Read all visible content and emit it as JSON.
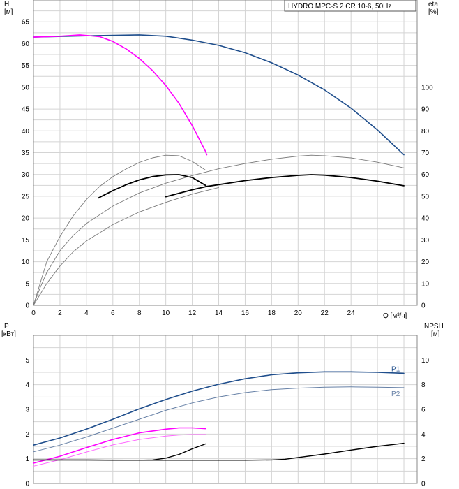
{
  "chart_data": [
    {
      "type": "line",
      "legend_box": "HYDRO MPC-S 2 CR 10-6, 50Hz",
      "y_label_left": "H",
      "y_unit_left": "[м]",
      "y_label_right": "eta",
      "y_unit_right": "[%]",
      "x_label": "Q [м³/ч]",
      "xlim": [
        0,
        29
      ],
      "x_ticks": [
        0,
        2,
        4,
        6,
        8,
        10,
        12,
        14,
        16,
        18,
        20,
        22,
        24
      ],
      "ylim": [
        0,
        70
      ],
      "y_ticks": [
        0,
        5,
        10,
        15,
        20,
        25,
        30,
        35,
        40,
        45,
        50,
        55,
        60,
        65
      ],
      "y2lim": [
        0,
        140
      ],
      "y2_ticks": [
        0,
        10,
        20,
        30,
        40,
        50,
        60,
        70,
        80,
        90,
        100
      ],
      "grid": true,
      "series": [
        {
          "color": "#1f4e8c",
          "width": 1.6,
          "axis": "left",
          "points": [
            [
              0,
              61.5
            ],
            [
              4,
              61.8
            ],
            [
              8,
              62
            ],
            [
              10,
              61.7
            ],
            [
              12,
              60.8
            ],
            [
              14,
              59.6
            ],
            [
              16,
              57.9
            ],
            [
              18,
              55.6
            ],
            [
              20,
              52.8
            ],
            [
              22,
              49.4
            ],
            [
              24,
              45.2
            ],
            [
              26,
              40.2
            ],
            [
              28,
              34.5
            ]
          ]
        },
        {
          "color": "#ff00ff",
          "width": 1.6,
          "axis": "left",
          "points": [
            [
              0,
              61.5
            ],
            [
              2,
              61.7
            ],
            [
              3.5,
              62
            ],
            [
              5,
              61.6
            ],
            [
              6,
              60.5
            ],
            [
              7,
              58.8
            ],
            [
              8,
              56.6
            ],
            [
              9,
              53.8
            ],
            [
              10,
              50.4
            ],
            [
              11,
              46.3
            ],
            [
              12,
              41.2
            ],
            [
              13,
              35.3
            ],
            [
              13.1,
              34.5
            ]
          ]
        },
        {
          "color": "#000000",
          "width": 1.8,
          "axis": "right",
          "points": [
            [
              4.9,
              49.2
            ],
            [
              6,
              52.6
            ],
            [
              7,
              55.3
            ],
            [
              8,
              57.5
            ],
            [
              9,
              59.0
            ],
            [
              10,
              59.8
            ],
            [
              11,
              59.9
            ],
            [
              12,
              58.6
            ],
            [
              13,
              55.0
            ]
          ]
        },
        {
          "color": "#000000",
          "width": 1.8,
          "axis": "right",
          "points": [
            [
              10,
              49.8
            ],
            [
              12,
              53.0
            ],
            [
              13,
              54.4
            ],
            [
              16,
              57.2
            ],
            [
              18,
              58.6
            ],
            [
              20,
              59.6
            ],
            [
              21,
              59.9
            ],
            [
              22,
              59.7
            ],
            [
              24,
              58.6
            ],
            [
              26,
              56.9
            ],
            [
              28,
              54.8
            ]
          ]
        },
        {
          "color": "#7a7a7a",
          "width": 0.9,
          "axis": "right",
          "points": [
            [
              0,
              0
            ],
            [
              0.5,
              10
            ],
            [
              1,
              20
            ],
            [
              2,
              31.5
            ],
            [
              3,
              41
            ],
            [
              4,
              48.5
            ],
            [
              5,
              54.5
            ],
            [
              6,
              59
            ],
            [
              7,
              62.5
            ],
            [
              8,
              65.5
            ],
            [
              9,
              67.6
            ],
            [
              10,
              68.8
            ],
            [
              11,
              68.6
            ],
            [
              12,
              66
            ],
            [
              13,
              62
            ]
          ]
        },
        {
          "color": "#7a7a7a",
          "width": 0.9,
          "axis": "right",
          "points": [
            [
              0,
              0
            ],
            [
              0.5,
              8
            ],
            [
              1,
              15
            ],
            [
              2,
              25
            ],
            [
              3,
              32
            ],
            [
              4,
              37.5
            ],
            [
              6,
              45.5
            ],
            [
              8,
              51.5
            ],
            [
              10,
              56
            ],
            [
              12,
              59.5
            ],
            [
              14,
              62.6
            ],
            [
              16,
              65
            ],
            [
              18,
              67
            ],
            [
              20,
              68.4
            ],
            [
              21,
              68.8
            ],
            [
              22,
              68.6
            ],
            [
              24,
              67.6
            ],
            [
              26,
              65.6
            ],
            [
              28,
              63
            ]
          ]
        },
        {
          "color": "#7a7a7a",
          "width": 0.9,
          "axis": "right",
          "points": [
            [
              0,
              0
            ],
            [
              0.5,
              5
            ],
            [
              1,
              10
            ],
            [
              2,
              18
            ],
            [
              3,
              24.5
            ],
            [
              4,
              29.5
            ],
            [
              6,
              37
            ],
            [
              8,
              42.8
            ],
            [
              10,
              47.2
            ],
            [
              12,
              51
            ],
            [
              14,
              54
            ]
          ]
        }
      ]
    },
    {
      "type": "line",
      "y_label_left": "P",
      "y_unit_left": "[кВт]",
      "y_label_right": "NPSH",
      "y_unit_right": "[м]",
      "xlim": [
        0,
        29
      ],
      "ylim": [
        0,
        6
      ],
      "y_ticks": [
        0,
        1,
        2,
        3,
        4,
        5
      ],
      "y2lim": [
        0,
        12
      ],
      "y2_ticks": [
        0,
        2,
        4,
        6,
        8,
        10
      ],
      "grid": true,
      "series": [
        {
          "name": "P1",
          "color": "#1f4e8c",
          "width": 1.6,
          "axis": "left",
          "points": [
            [
              0,
              1.55
            ],
            [
              2,
              1.84
            ],
            [
              4,
              2.2
            ],
            [
              6,
              2.6
            ],
            [
              8,
              3.02
            ],
            [
              10,
              3.4
            ],
            [
              12,
              3.74
            ],
            [
              14,
              4.02
            ],
            [
              16,
              4.24
            ],
            [
              18,
              4.4
            ],
            [
              20,
              4.48
            ],
            [
              22,
              4.52
            ],
            [
              24,
              4.52
            ],
            [
              26,
              4.5
            ],
            [
              28,
              4.46
            ]
          ]
        },
        {
          "name": "P2",
          "color": "#6680a6",
          "width": 1.0,
          "axis": "left",
          "points": [
            [
              0,
              1.28
            ],
            [
              2,
              1.55
            ],
            [
              4,
              1.88
            ],
            [
              6,
              2.24
            ],
            [
              8,
              2.6
            ],
            [
              10,
              2.96
            ],
            [
              12,
              3.26
            ],
            [
              14,
              3.5
            ],
            [
              16,
              3.68
            ],
            [
              18,
              3.8
            ],
            [
              20,
              3.86
            ],
            [
              22,
              3.9
            ],
            [
              24,
              3.91
            ],
            [
              26,
              3.9
            ],
            [
              28,
              3.88
            ]
          ]
        },
        {
          "color": "#ff00ff",
          "width": 1.6,
          "axis": "left",
          "points": [
            [
              0,
              0.82
            ],
            [
              2,
              1.1
            ],
            [
              4,
              1.45
            ],
            [
              6,
              1.78
            ],
            [
              8,
              2.05
            ],
            [
              10,
              2.2
            ],
            [
              11,
              2.25
            ],
            [
              12,
              2.25
            ],
            [
              13,
              2.22
            ]
          ]
        },
        {
          "color": "#ff66ff",
          "width": 1.0,
          "axis": "left",
          "points": [
            [
              0,
              0.7
            ],
            [
              2,
              0.96
            ],
            [
              4,
              1.27
            ],
            [
              6,
              1.56
            ],
            [
              8,
              1.78
            ],
            [
              10,
              1.92
            ],
            [
              11,
              1.96
            ],
            [
              12,
              1.98
            ],
            [
              13,
              1.98
            ]
          ]
        },
        {
          "color": "#000000",
          "width": 1.4,
          "axis": "right",
          "points": [
            [
              0,
              1.9
            ],
            [
              4,
              1.9
            ],
            [
              6,
              1.88
            ],
            [
              8,
              1.88
            ],
            [
              9,
              1.9
            ],
            [
              10,
              2.05
            ],
            [
              11,
              2.35
            ],
            [
              12,
              2.8
            ],
            [
              13,
              3.2
            ]
          ]
        },
        {
          "color": "#000000",
          "width": 1.4,
          "axis": "right",
          "points": [
            [
              0,
              1.9
            ],
            [
              10,
              1.88
            ],
            [
              16,
              1.88
            ],
            [
              18,
              1.9
            ],
            [
              19,
              1.96
            ],
            [
              20,
              2.1
            ],
            [
              22,
              2.38
            ],
            [
              24,
              2.7
            ],
            [
              26,
              3.0
            ],
            [
              28,
              3.25
            ]
          ]
        }
      ]
    }
  ]
}
